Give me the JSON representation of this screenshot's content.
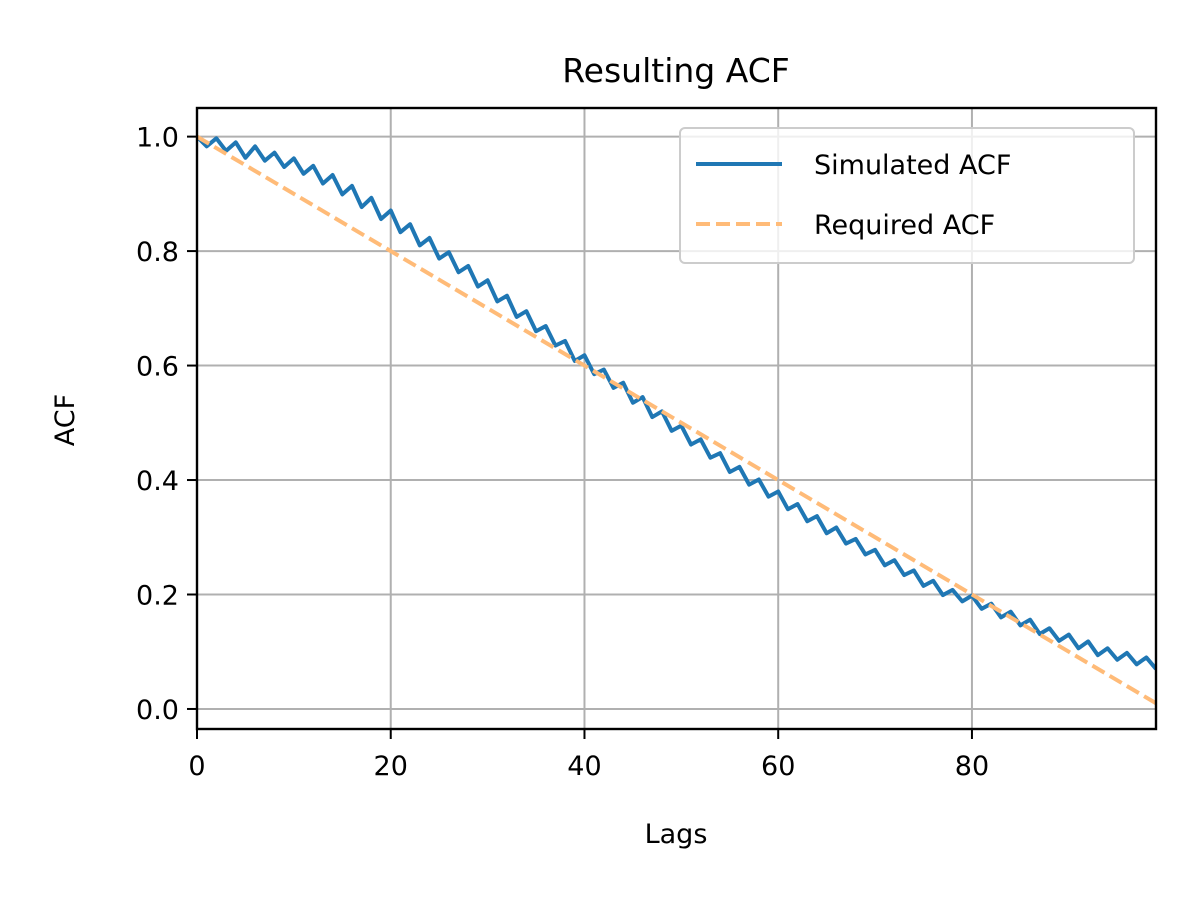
{
  "chart_data": {
    "type": "line",
    "title": "Resulting ACF",
    "xlabel": "Lags",
    "ylabel": "ACF",
    "xlim": [
      0,
      99
    ],
    "ylim": [
      -0.035,
      1.05
    ],
    "x_ticks": [
      0,
      20,
      40,
      60,
      80
    ],
    "x_tick_labels": [
      "0",
      "20",
      "40",
      "60",
      "80"
    ],
    "y_ticks": [
      0.0,
      0.2,
      0.4,
      0.6,
      0.8,
      1.0
    ],
    "y_tick_labels": [
      "0.0",
      "0.2",
      "0.4",
      "0.6",
      "0.8",
      "1.0"
    ],
    "grid": true,
    "legend_position": "top-right",
    "series": [
      {
        "name": "Simulated ACF",
        "color": "#1f77b4",
        "style": "solid",
        "x": [
          0,
          1,
          2,
          3,
          4,
          5,
          6,
          7,
          8,
          9,
          10,
          11,
          12,
          13,
          14,
          15,
          16,
          17,
          18,
          19,
          20,
          21,
          22,
          23,
          24,
          25,
          26,
          27,
          28,
          29,
          30,
          31,
          32,
          33,
          34,
          35,
          36,
          37,
          38,
          39,
          40,
          41,
          42,
          43,
          44,
          45,
          46,
          47,
          48,
          49,
          50,
          51,
          52,
          53,
          54,
          55,
          56,
          57,
          58,
          59,
          60,
          61,
          62,
          63,
          64,
          65,
          66,
          67,
          68,
          69,
          70,
          71,
          72,
          73,
          74,
          75,
          76,
          77,
          78,
          79,
          80,
          81,
          82,
          83,
          84,
          85,
          86,
          87,
          88,
          89,
          90,
          91,
          92,
          93,
          94,
          95,
          96,
          97,
          98,
          99
        ],
        "values": [
          1.0,
          0.983,
          0.997,
          0.975,
          0.99,
          0.963,
          0.983,
          0.958,
          0.972,
          0.947,
          0.962,
          0.935,
          0.949,
          0.918,
          0.933,
          0.899,
          0.914,
          0.877,
          0.893,
          0.856,
          0.871,
          0.833,
          0.847,
          0.81,
          0.823,
          0.787,
          0.798,
          0.763,
          0.774,
          0.738,
          0.749,
          0.712,
          0.722,
          0.685,
          0.695,
          0.66,
          0.669,
          0.635,
          0.643,
          0.608,
          0.618,
          0.585,
          0.593,
          0.561,
          0.57,
          0.535,
          0.545,
          0.51,
          0.52,
          0.486,
          0.495,
          0.462,
          0.471,
          0.439,
          0.447,
          0.414,
          0.423,
          0.392,
          0.401,
          0.371,
          0.38,
          0.349,
          0.358,
          0.328,
          0.337,
          0.307,
          0.317,
          0.289,
          0.297,
          0.27,
          0.278,
          0.251,
          0.26,
          0.234,
          0.242,
          0.215,
          0.224,
          0.199,
          0.208,
          0.188,
          0.198,
          0.175,
          0.184,
          0.16,
          0.17,
          0.146,
          0.156,
          0.131,
          0.141,
          0.119,
          0.13,
          0.106,
          0.118,
          0.094,
          0.106,
          0.086,
          0.098,
          0.078,
          0.09,
          0.07
        ]
      },
      {
        "name": "Required ACF",
        "color": "#ffbb78",
        "style": "dashed",
        "x": [
          0,
          99
        ],
        "values": [
          1.0,
          0.01
        ]
      }
    ]
  }
}
